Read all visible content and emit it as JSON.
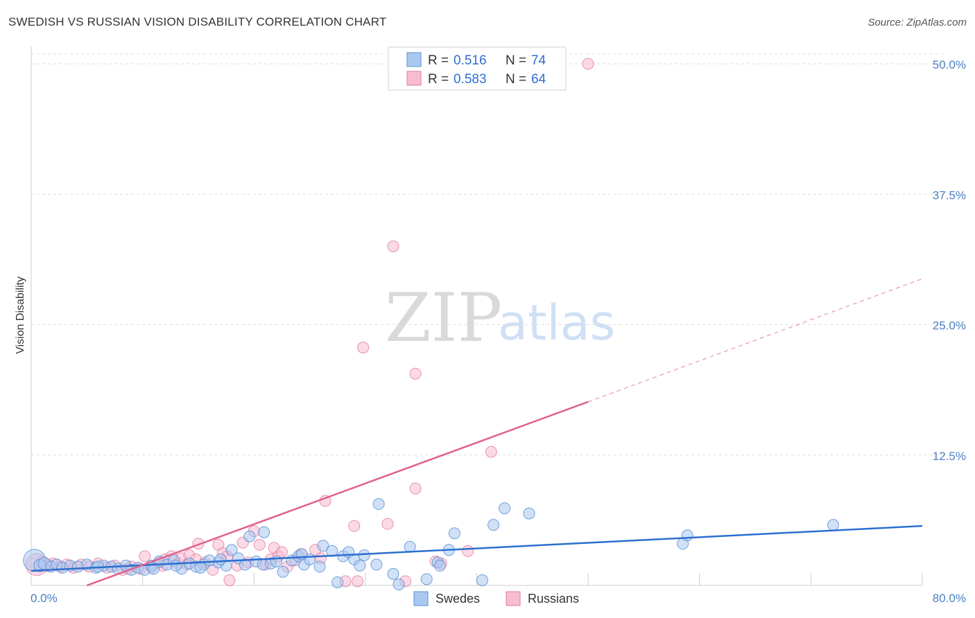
{
  "header": {
    "title": "SWEDISH VS RUSSIAN VISION DISABILITY CORRELATION CHART",
    "source": "Source: ZipAtlas.com"
  },
  "watermark": {
    "zip": "ZIP",
    "atlas": "atlas"
  },
  "legend": {
    "r_label": "R =",
    "n_label": "N =",
    "swedes": {
      "r": "0.516",
      "n": "74"
    },
    "russians": {
      "r": "0.583",
      "n": "64"
    }
  },
  "bottom_legend": {
    "swedes": "Swedes",
    "russians": "Russians"
  },
  "colors": {
    "swedes_fill": "#a9c8f0",
    "swedes_stroke": "#5b8fd6",
    "swedes_line": "#2b6fcf",
    "russians_fill": "#f7bcd0",
    "russians_stroke": "#e07aa0",
    "russians_line": "#e0608f",
    "grid": "#dddddd",
    "tick_text": "#4a7fc1"
  },
  "chart_data": {
    "type": "scatter",
    "title": "SWEDISH VS RUSSIAN VISION DISABILITY CORRELATION CHART",
    "xlabel": "",
    "ylabel": "Vision Disability",
    "xlim": [
      0,
      80
    ],
    "ylim": [
      0,
      52
    ],
    "x_tick_labels": [
      "0.0%",
      "80.0%"
    ],
    "y_ticks": [
      12.5,
      25.0,
      37.5,
      50.0
    ],
    "y_tick_labels": [
      "12.5%",
      "25.0%",
      "37.5%",
      "50.0%"
    ],
    "series": [
      {
        "name": "Swedes",
        "r": 0.516,
        "n": 74,
        "trend": {
          "x": [
            0,
            80
          ],
          "y": [
            1.4,
            5.7
          ]
        },
        "points": [
          [
            0.3,
            2.4,
            16
          ],
          [
            0.8,
            1.9,
            9
          ],
          [
            1.2,
            2.1,
            9
          ],
          [
            1.8,
            1.8,
            8
          ],
          [
            2.3,
            2.0,
            8
          ],
          [
            2.8,
            1.7,
            8
          ],
          [
            3.5,
            1.9,
            8
          ],
          [
            4.2,
            1.8,
            8
          ],
          [
            5.0,
            2.0,
            8
          ],
          [
            5.8,
            1.7,
            8
          ],
          [
            6.5,
            1.9,
            8
          ],
          [
            7.2,
            1.8,
            8
          ],
          [
            7.8,
            1.6,
            8
          ],
          [
            8.5,
            1.9,
            8
          ],
          [
            9.0,
            1.5,
            8
          ],
          [
            9.6,
            1.7,
            8
          ],
          [
            10.2,
            1.5,
            8
          ],
          [
            10.8,
            1.9,
            8
          ],
          [
            11.5,
            2.3,
            8
          ],
          [
            12.2,
            2.0,
            8
          ],
          [
            12.8,
            2.4,
            8
          ],
          [
            13.5,
            1.6,
            8
          ],
          [
            14.2,
            2.1,
            8
          ],
          [
            14.8,
            1.8,
            8
          ],
          [
            15.5,
            2.0,
            8
          ],
          [
            16.0,
            2.4,
            8
          ],
          [
            16.8,
            2.2,
            8
          ],
          [
            17.5,
            1.9,
            8
          ],
          [
            18.0,
            3.4,
            8
          ],
          [
            18.6,
            2.6,
            8
          ],
          [
            19.2,
            2.0,
            8
          ],
          [
            19.6,
            4.7,
            8
          ],
          [
            20.2,
            2.3,
            8
          ],
          [
            20.8,
            2.0,
            8
          ],
          [
            21.5,
            2.1,
            8
          ],
          [
            22.0,
            2.3,
            8
          ],
          [
            22.6,
            1.3,
            8
          ],
          [
            23.4,
            2.4,
            8
          ],
          [
            24.0,
            2.8,
            8
          ],
          [
            24.5,
            2.0,
            8
          ],
          [
            25.0,
            2.5,
            8
          ],
          [
            24.3,
            3.0,
            8
          ],
          [
            25.9,
            1.8,
            8
          ],
          [
            26.2,
            3.8,
            8
          ],
          [
            27.0,
            3.3,
            8
          ],
          [
            27.5,
            0.3,
            8
          ],
          [
            28.0,
            2.8,
            8
          ],
          [
            28.5,
            3.2,
            8
          ],
          [
            29.0,
            2.5,
            8
          ],
          [
            29.5,
            1.9,
            8
          ],
          [
            29.9,
            2.9,
            8
          ],
          [
            31.0,
            2.0,
            8
          ],
          [
            31.2,
            7.8,
            8
          ],
          [
            32.5,
            1.1,
            8
          ],
          [
            33.0,
            0.1,
            8
          ],
          [
            34.0,
            3.7,
            8
          ],
          [
            35.5,
            0.6,
            8
          ],
          [
            36.5,
            2.2,
            8
          ],
          [
            36.7,
            1.9,
            8
          ],
          [
            37.5,
            3.4,
            8
          ],
          [
            38.0,
            5.0,
            8
          ],
          [
            40.5,
            0.5,
            8
          ],
          [
            41.5,
            5.8,
            8
          ],
          [
            42.5,
            7.4,
            8
          ],
          [
            44.7,
            6.9,
            8
          ],
          [
            58.5,
            4.0,
            8
          ],
          [
            58.9,
            4.8,
            8
          ],
          [
            72.0,
            5.8,
            8
          ],
          [
            20.9,
            5.1,
            8
          ],
          [
            17.0,
            2.5,
            8
          ],
          [
            15.2,
            1.7,
            8
          ],
          [
            13.0,
            1.9,
            8
          ],
          [
            11.0,
            1.6,
            8
          ],
          [
            6.0,
            1.8,
            8
          ]
        ]
      },
      {
        "name": "Russians",
        "r": 0.583,
        "n": 64,
        "trend": {
          "x": [
            5,
            50
          ],
          "y": [
            0,
            17.6
          ]
        },
        "trend_extension": {
          "x": [
            50,
            80
          ],
          "y": [
            17.6,
            29.4
          ]
        },
        "points": [
          [
            0.5,
            2.0,
            16
          ],
          [
            1.0,
            2.2,
            9
          ],
          [
            1.5,
            1.9,
            9
          ],
          [
            2.0,
            2.1,
            8
          ],
          [
            2.6,
            1.8,
            8
          ],
          [
            3.2,
            2.0,
            8
          ],
          [
            3.8,
            1.7,
            8
          ],
          [
            4.5,
            2.0,
            8
          ],
          [
            5.2,
            1.8,
            8
          ],
          [
            6.0,
            2.1,
            8
          ],
          [
            6.8,
            1.7,
            8
          ],
          [
            7.5,
            1.9,
            8
          ],
          [
            8.2,
            1.5,
            8
          ],
          [
            9.0,
            1.8,
            8
          ],
          [
            9.8,
            1.6,
            8
          ],
          [
            10.2,
            2.8,
            8
          ],
          [
            10.8,
            1.7,
            8
          ],
          [
            11.5,
            2.2,
            8
          ],
          [
            12.0,
            2.5,
            8
          ],
          [
            12.6,
            2.8,
            8
          ],
          [
            13.2,
            2.1,
            8
          ],
          [
            13.5,
            2.6,
            8
          ],
          [
            14.0,
            2.0,
            8
          ],
          [
            14.2,
            2.9,
            8
          ],
          [
            14.8,
            2.5,
            8
          ],
          [
            15.0,
            4.0,
            8
          ],
          [
            15.6,
            2.2,
            8
          ],
          [
            16.3,
            1.5,
            8
          ],
          [
            16.8,
            3.9,
            8
          ],
          [
            17.2,
            3.1,
            8
          ],
          [
            17.6,
            2.8,
            8
          ],
          [
            17.8,
            0.5,
            8
          ],
          [
            18.5,
            1.9,
            8
          ],
          [
            19.0,
            4.1,
            8
          ],
          [
            19.5,
            2.2,
            8
          ],
          [
            20.0,
            5.2,
            8
          ],
          [
            20.5,
            3.9,
            8
          ],
          [
            21.0,
            2.0,
            8
          ],
          [
            21.5,
            2.5,
            8
          ],
          [
            21.8,
            3.6,
            8
          ],
          [
            22.2,
            2.8,
            8
          ],
          [
            22.5,
            3.2,
            8
          ],
          [
            23.0,
            1.8,
            8
          ],
          [
            23.7,
            2.4,
            8
          ],
          [
            24.2,
            3.0,
            8
          ],
          [
            25.5,
            3.4,
            8
          ],
          [
            26.0,
            2.6,
            8
          ],
          [
            26.4,
            8.1,
            8
          ],
          [
            28.2,
            0.4,
            8
          ],
          [
            29.0,
            5.7,
            8
          ],
          [
            29.3,
            0.4,
            8
          ],
          [
            29.8,
            22.8,
            8
          ],
          [
            32.0,
            5.9,
            8
          ],
          [
            32.5,
            32.5,
            8
          ],
          [
            33.6,
            0.4,
            8
          ],
          [
            34.5,
            20.3,
            8
          ],
          [
            34.5,
            9.3,
            8
          ],
          [
            36.3,
            2.3,
            8
          ],
          [
            36.8,
            2.1,
            8
          ],
          [
            39.2,
            3.3,
            8
          ],
          [
            41.3,
            12.8,
            8
          ],
          [
            50.0,
            50.0,
            8
          ],
          [
            8.7,
            1.6,
            8
          ],
          [
            11.8,
            1.9,
            8
          ]
        ]
      }
    ]
  }
}
